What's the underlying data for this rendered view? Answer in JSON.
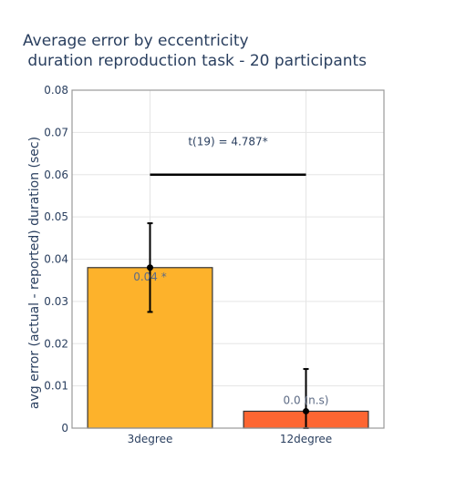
{
  "chart_data": {
    "type": "bar",
    "title_line1": "Average error by eccentricity",
    "title_line2": " duration reproduction task - 20 participants",
    "xlabel": "",
    "ylabel": "avg error (actual - reported) duration (sec)",
    "categories": [
      "3degree",
      "12degree"
    ],
    "values": [
      0.038,
      0.004
    ],
    "error_upper": [
      0.0485,
      0.014
    ],
    "error_lower": [
      0.0275,
      0.0
    ],
    "bar_labels": [
      "0.04 *",
      "0.0 (n.s)"
    ],
    "bar_colors": [
      "#fdb22b",
      "#fd6632"
    ],
    "ylim": [
      0,
      0.08
    ],
    "yticks": [
      "0",
      "0.01",
      "0.02",
      "0.03",
      "0.04",
      "0.05",
      "0.06",
      "0.07",
      "0.08"
    ],
    "ytick_values": [
      0,
      0.01,
      0.02,
      0.03,
      0.04,
      0.05,
      0.06,
      0.07,
      0.08
    ],
    "significance": {
      "label": "t(19) = 4.787*",
      "bracket_y": 0.06,
      "from": "3degree",
      "to": "12degree"
    },
    "grid": true,
    "legend": "none"
  }
}
